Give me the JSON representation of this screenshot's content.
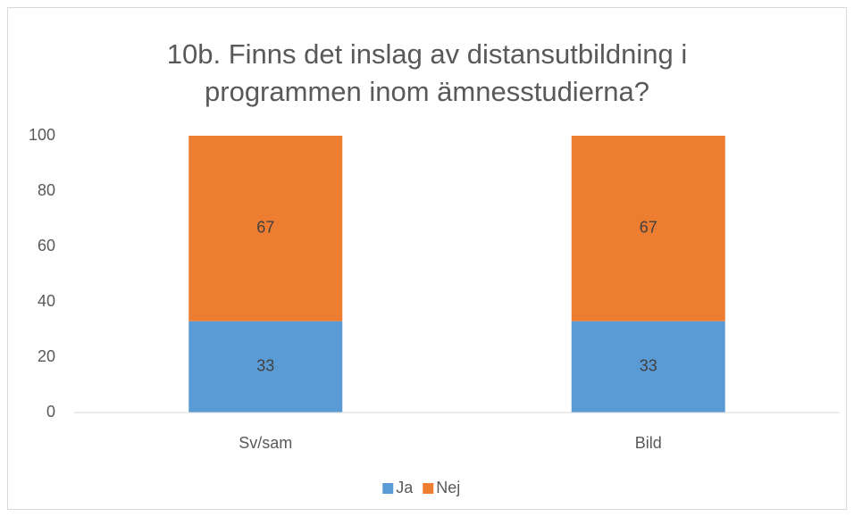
{
  "chart_data": {
    "type": "stacked_bar",
    "title": "10b. Finns det inslag av distansutbildning i programmen inom ämnesstudierna?",
    "categories": [
      "Sv/sam",
      "Bild"
    ],
    "series": [
      {
        "name": "Ja",
        "color": "#5b9bd5",
        "values": [
          33,
          33
        ]
      },
      {
        "name": "Nej",
        "color": "#ed7d31",
        "values": [
          67,
          67
        ]
      }
    ],
    "ylim": [
      0,
      100
    ],
    "yticks": [
      0,
      20,
      40,
      60,
      80,
      100
    ],
    "grid": false,
    "legend": "bottom"
  }
}
